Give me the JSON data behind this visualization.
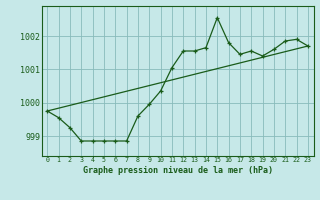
{
  "title": "Graphe pression niveau de la mer (hPa)",
  "bg_color": "#c6e8e8",
  "line_color": "#1a5c1a",
  "grid_color": "#88bbbb",
  "xlim": [
    -0.5,
    23.5
  ],
  "ylim": [
    998.4,
    1002.9
  ],
  "yticks": [
    999,
    1000,
    1001,
    1002
  ],
  "xticks": [
    0,
    1,
    2,
    3,
    4,
    5,
    6,
    7,
    8,
    9,
    10,
    11,
    12,
    13,
    14,
    15,
    16,
    17,
    18,
    19,
    20,
    21,
    22,
    23
  ],
  "series1_x": [
    0,
    1,
    2,
    3,
    4,
    5,
    6,
    7,
    8,
    9,
    10,
    11,
    12,
    13,
    14,
    15,
    16,
    17,
    18,
    19,
    20,
    21,
    22,
    23
  ],
  "series1_y": [
    999.75,
    999.55,
    999.25,
    998.85,
    998.85,
    998.85,
    998.85,
    998.85,
    999.6,
    999.95,
    1000.35,
    1001.05,
    1001.55,
    1001.55,
    1001.65,
    1002.55,
    1001.8,
    1001.45,
    1001.55,
    1001.4,
    1001.6,
    1001.85,
    1001.9,
    1001.7
  ],
  "trend_x": [
    0,
    23
  ],
  "trend_y": [
    999.75,
    1001.7
  ]
}
